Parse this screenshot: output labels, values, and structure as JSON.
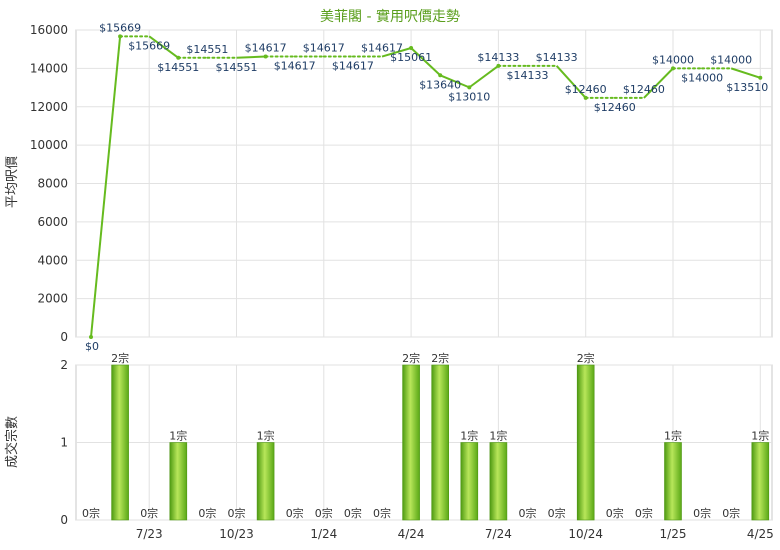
{
  "chart_data": [
    {
      "type": "line",
      "title": "美菲閣 - 實用呎價走勢",
      "ylabel": "平均呎價",
      "ylim": [
        0,
        16000
      ],
      "y_ticks": [
        0,
        2000,
        4000,
        6000,
        8000,
        10000,
        12000,
        14000,
        16000
      ],
      "x_tick_labels": [
        "7/23",
        "10/23",
        "1/24",
        "4/24",
        "7/24",
        "10/24",
        "1/25",
        "4/25"
      ],
      "grid": true,
      "color": "#66bb1f",
      "series": [
        {
          "values": [
            0,
            15669,
            15669,
            14551,
            14551,
            14551,
            14617,
            14617,
            14617,
            14617,
            14617,
            15061,
            13640,
            13010,
            14133,
            14133,
            14133,
            12460,
            12460,
            12460,
            14000,
            14000,
            14000,
            13510
          ],
          "labels": [
            "$0",
            "$15669",
            "$15669",
            "$14551",
            "$14551",
            "$14551",
            "$14617",
            "$14617",
            "$14617",
            "$14617",
            "$14617",
            "$15061",
            "$13640",
            "$13010",
            "$14133",
            "$14133",
            "$14133",
            "$12460",
            "$12460",
            "$12460",
            "$14000",
            "$14000",
            "$14000",
            "$13510"
          ],
          "carried_forward": [
            false,
            false,
            true,
            false,
            true,
            true,
            false,
            true,
            true,
            true,
            true,
            false,
            false,
            false,
            false,
            true,
            true,
            false,
            true,
            true,
            false,
            true,
            true,
            false
          ]
        }
      ]
    },
    {
      "type": "bar",
      "ylabel": "成交宗數",
      "ylim": [
        0,
        2
      ],
      "y_ticks": [
        0,
        1,
        2
      ],
      "x_tick_labels": [
        "7/23",
        "10/23",
        "1/24",
        "4/24",
        "7/24",
        "10/24",
        "1/25",
        "4/25"
      ],
      "grid": true,
      "color": "#66bb1f",
      "series": [
        {
          "values": [
            0,
            2,
            0,
            1,
            0,
            0,
            1,
            0,
            0,
            0,
            0,
            2,
            2,
            1,
            1,
            0,
            0,
            2,
            0,
            0,
            1,
            0,
            0,
            1
          ],
          "labels": [
            "0宗",
            "2宗",
            "0宗",
            "1宗",
            "0宗",
            "0宗",
            "1宗",
            "0宗",
            "0宗",
            "0宗",
            "0宗",
            "2宗",
            "2宗",
            "1宗",
            "1宗",
            "0宗",
            "0宗",
            "2宗",
            "0宗",
            "0宗",
            "1宗",
            "0宗",
            "0宗",
            "1宗"
          ]
        }
      ]
    }
  ]
}
